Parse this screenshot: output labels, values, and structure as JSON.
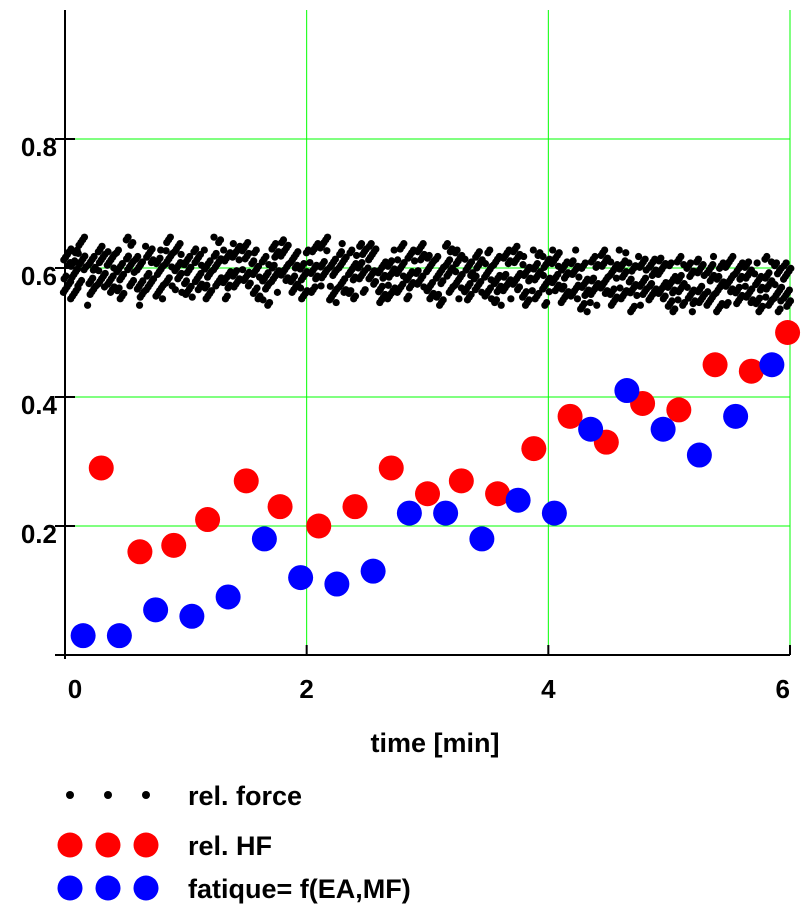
{
  "chart_data": {
    "type": "scatter",
    "title": "",
    "xlabel": "time [min]",
    "ylabel": "",
    "xlim": [
      0,
      6
    ],
    "ylim": [
      0,
      1.0
    ],
    "xticks": [
      {
        "value": 0,
        "label": "0"
      },
      {
        "value": 2,
        "label": "2"
      },
      {
        "value": 4,
        "label": "4"
      },
      {
        "value": 6,
        "label": "6"
      }
    ],
    "yticks": [
      {
        "value": 0.2,
        "label": "0.2"
      },
      {
        "value": 0.4,
        "label": "0.4"
      },
      {
        "value": 0.6,
        "label": "0.6"
      },
      {
        "value": 0.8,
        "label": "0.8"
      }
    ],
    "grid": true,
    "legend_position": "bottom-left",
    "series": [
      {
        "name": "rel. force",
        "color": "#000000",
        "marker": "small-dot",
        "x": [
          0.02,
          0.08,
          0.14,
          0.22,
          0.3,
          0.38,
          0.46,
          0.54,
          0.62,
          0.7,
          0.78,
          0.86,
          0.94,
          1.02,
          1.1,
          1.18,
          1.26,
          1.34,
          1.42,
          1.5,
          1.58,
          1.66,
          1.74,
          1.82,
          1.9,
          1.98,
          2.06,
          2.14,
          2.22,
          2.3,
          2.38,
          2.46,
          2.54,
          2.62,
          2.7,
          2.78,
          2.86,
          2.94,
          3.02,
          3.1,
          3.18,
          3.26,
          3.34,
          3.42,
          3.5,
          3.58,
          3.66,
          3.74,
          3.82,
          3.9,
          3.98,
          4.06,
          4.14,
          4.22,
          4.3,
          4.38,
          4.46,
          4.54,
          4.62,
          4.7,
          4.78,
          4.86,
          4.94,
          5.02,
          5.1,
          5.18,
          5.26,
          5.34,
          5.42,
          5.5,
          5.58,
          5.66,
          5.74,
          5.82,
          5.9,
          5.98
        ],
        "y": [
          0.6,
          0.59,
          0.61,
          0.58,
          0.6,
          0.6,
          0.59,
          0.61,
          0.58,
          0.6,
          0.59,
          0.61,
          0.6,
          0.58,
          0.6,
          0.59,
          0.61,
          0.59,
          0.6,
          0.61,
          0.59,
          0.58,
          0.6,
          0.61,
          0.6,
          0.59,
          0.6,
          0.61,
          0.58,
          0.6,
          0.59,
          0.6,
          0.6,
          0.58,
          0.59,
          0.6,
          0.59,
          0.6,
          0.59,
          0.58,
          0.6,
          0.59,
          0.58,
          0.6,
          0.59,
          0.58,
          0.59,
          0.6,
          0.58,
          0.59,
          0.58,
          0.59,
          0.58,
          0.59,
          0.57,
          0.58,
          0.59,
          0.58,
          0.59,
          0.57,
          0.58,
          0.58,
          0.59,
          0.57,
          0.58,
          0.57,
          0.58,
          0.58,
          0.57,
          0.58,
          0.57,
          0.58,
          0.57,
          0.58,
          0.57,
          0.57
        ]
      },
      {
        "name": "rel. HF",
        "color": "#ff0000",
        "marker": "large-dot",
        "x": [
          0.3,
          0.62,
          0.9,
          1.18,
          1.5,
          1.78,
          2.1,
          2.4,
          2.7,
          3.0,
          3.28,
          3.58,
          3.88,
          4.18,
          4.48,
          4.78,
          5.08,
          5.38,
          5.68,
          5.98
        ],
        "y": [
          0.29,
          0.16,
          0.17,
          0.21,
          0.27,
          0.23,
          0.2,
          0.23,
          0.29,
          0.25,
          0.27,
          0.25,
          0.32,
          0.37,
          0.33,
          0.39,
          0.38,
          0.45,
          0.44,
          0.5
        ]
      },
      {
        "name": "fatique= f(EA,MF)",
        "color": "#0000ff",
        "marker": "large-dot",
        "x": [
          0.15,
          0.45,
          0.75,
          1.05,
          1.35,
          1.65,
          1.95,
          2.25,
          2.55,
          2.85,
          3.15,
          3.45,
          3.75,
          4.05,
          4.35,
          4.65,
          4.95,
          5.25,
          5.55,
          5.85
        ],
        "y": [
          0.03,
          0.03,
          0.07,
          0.06,
          0.09,
          0.18,
          0.12,
          0.11,
          0.13,
          0.22,
          0.22,
          0.18,
          0.24,
          0.22,
          0.35,
          0.41,
          0.35,
          0.31,
          0.37,
          0.45
        ]
      }
    ]
  }
}
